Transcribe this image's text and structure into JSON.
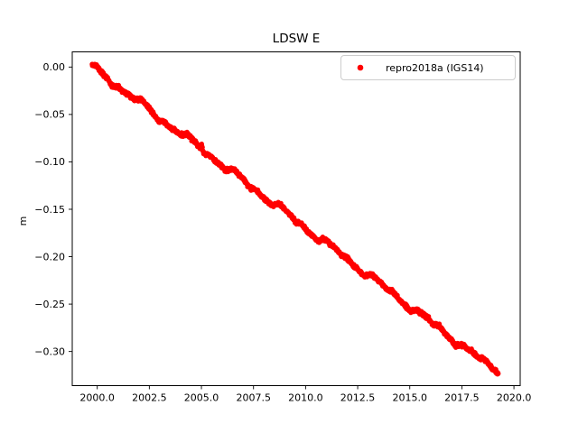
{
  "figure": {
    "title": "LDSW E",
    "ylabel": "m",
    "background_color": "#ffffff",
    "axes_edge_color": "#000000",
    "tick_color": "#000000"
  },
  "legend": {
    "label": "repro2018a (IGS14)",
    "marker_icon": "red-dot",
    "marker_color": "#ff0000",
    "border_color": "#cccccc",
    "background_color": "#ffffff"
  },
  "chart_data": {
    "type": "scatter",
    "title": "LDSW E",
    "xlabel": "",
    "ylabel": "m",
    "grid": false,
    "legend_position": "upper right",
    "xlim": [
      1998.8,
      2020.3
    ],
    "ylim": [
      -0.336,
      0.016
    ],
    "xticks": [
      2000.0,
      2002.5,
      2005.0,
      2007.5,
      2010.0,
      2012.5,
      2015.0,
      2017.5,
      2020.0
    ],
    "xtick_labels": [
      "2000.0",
      "2002.5",
      "2005.0",
      "2007.5",
      "2010.0",
      "2012.5",
      "2015.0",
      "2017.5",
      "2020.0"
    ],
    "yticks": [
      0.0,
      -0.05,
      -0.1,
      -0.15,
      -0.2,
      -0.25,
      -0.3
    ],
    "ytick_labels": [
      "0.00",
      "−0.05",
      "−0.10",
      "−0.15",
      "−0.20",
      "−0.25",
      "−0.30"
    ],
    "series": [
      {
        "name": "repro2018a (IGS14)",
        "color": "#ff0000",
        "marker": "dot",
        "description": "dense time series of east-component displacement, nearly linear decreasing trend",
        "x_start": 1999.75,
        "x_end": 2019.25,
        "trend_slope_m_per_yr": -0.0165,
        "scatter_spread_m": 0.003,
        "trend_points": [
          [
            1999.75,
            0.0
          ],
          [
            2000.5,
            -0.012
          ],
          [
            2001.0,
            -0.021
          ],
          [
            2001.5,
            -0.028
          ],
          [
            2002.0,
            -0.037
          ],
          [
            2003.0,
            -0.054
          ],
          [
            2004.0,
            -0.07
          ],
          [
            2005.0,
            -0.086
          ],
          [
            2006.0,
            -0.103
          ],
          [
            2007.0,
            -0.12
          ],
          [
            2008.0,
            -0.136
          ],
          [
            2009.0,
            -0.153
          ],
          [
            2010.0,
            -0.17
          ],
          [
            2011.0,
            -0.186
          ],
          [
            2012.0,
            -0.203
          ],
          [
            2013.0,
            -0.219
          ],
          [
            2014.0,
            -0.236
          ],
          [
            2015.0,
            -0.252
          ],
          [
            2016.0,
            -0.269
          ],
          [
            2017.0,
            -0.285
          ],
          [
            2018.0,
            -0.302
          ],
          [
            2019.0,
            -0.318
          ],
          [
            2019.25,
            -0.32
          ]
        ]
      }
    ]
  }
}
